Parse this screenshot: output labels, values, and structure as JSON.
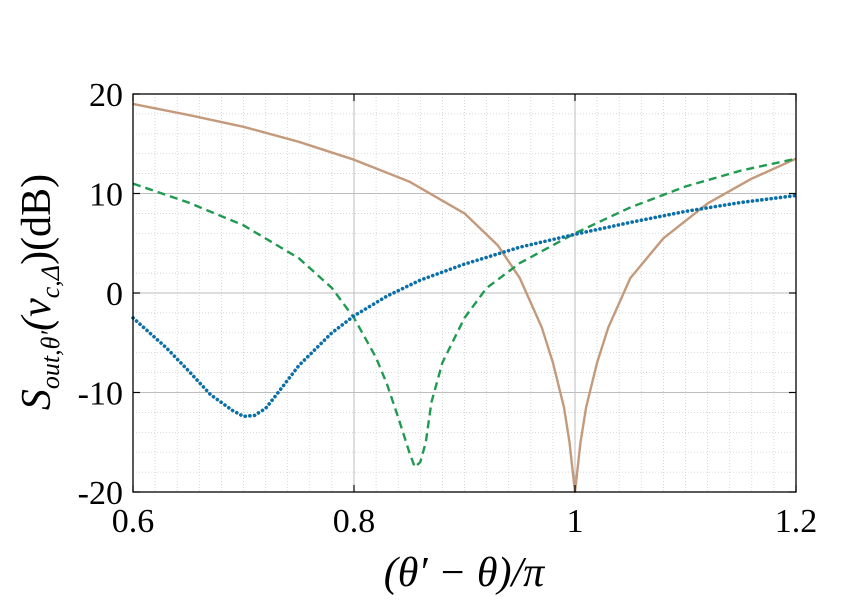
{
  "chart_data": {
    "type": "line",
    "xlabel": "(θ′ − θ)/π",
    "ylabel": "S_{out,θ′}(ν_{c,Δ})(dB)",
    "ylabel_main": "S",
    "ylabel_sub": "out,θ′",
    "ylabel_args": "(ν",
    "ylabel_args_sub": "c,Δ",
    "ylabel_tail": ")(dB)",
    "xlim": [
      0.6,
      1.2
    ],
    "ylim": [
      -20,
      20
    ],
    "x_ticks": [
      0.6,
      0.8,
      1.0,
      1.2
    ],
    "x_tick_labels": [
      "0.6",
      "0.8",
      "1",
      "1.2"
    ],
    "y_ticks": [
      20,
      10,
      0,
      -10,
      -20
    ],
    "y_tick_labels": [
      "20",
      "10",
      "0",
      "-10",
      "-20"
    ],
    "grid": true,
    "minor_grid": true,
    "series": [
      {
        "color": "#c49a7c",
        "style": "solid",
        "x": [
          0.6,
          0.65,
          0.7,
          0.75,
          0.8,
          0.85,
          0.9,
          0.93,
          0.95,
          0.97,
          0.98,
          0.99,
          0.995,
          1.0,
          1.005,
          1.01,
          1.02,
          1.03,
          1.05,
          1.08,
          1.12,
          1.16,
          1.2
        ],
        "y": [
          19.0,
          17.9,
          16.7,
          15.2,
          13.4,
          11.2,
          8.0,
          4.8,
          1.5,
          -3.5,
          -7.0,
          -11.5,
          -15.0,
          -20.0,
          -15.0,
          -11.5,
          -7.0,
          -3.5,
          1.5,
          5.5,
          9.0,
          11.5,
          13.5
        ]
      },
      {
        "color": "#1f9a50",
        "style": "dashed",
        "x": [
          0.6,
          0.65,
          0.7,
          0.75,
          0.78,
          0.8,
          0.82,
          0.83,
          0.84,
          0.85,
          0.855,
          0.86,
          0.865,
          0.87,
          0.88,
          0.9,
          0.92,
          0.95,
          1.0,
          1.05,
          1.1,
          1.15,
          1.2
        ],
        "y": [
          11.0,
          9.1,
          6.8,
          3.5,
          0.5,
          -2.5,
          -6.5,
          -9.2,
          -12.5,
          -16.0,
          -17.5,
          -17.0,
          -15.0,
          -11.0,
          -7.0,
          -2.5,
          0.5,
          3.0,
          6.0,
          8.6,
          10.7,
          12.3,
          13.5
        ]
      },
      {
        "color": "#0b6fa8",
        "style": "dotted",
        "x": [
          0.6,
          0.63,
          0.65,
          0.67,
          0.69,
          0.7,
          0.71,
          0.72,
          0.73,
          0.75,
          0.78,
          0.8,
          0.83,
          0.86,
          0.9,
          0.95,
          1.0,
          1.05,
          1.1,
          1.15,
          1.2
        ],
        "y": [
          -2.5,
          -5.5,
          -7.8,
          -10.2,
          -11.8,
          -12.4,
          -12.3,
          -11.6,
          -10.2,
          -7.3,
          -4.0,
          -2.3,
          -0.3,
          1.3,
          2.9,
          4.6,
          5.9,
          7.1,
          8.2,
          9.1,
          9.8
        ]
      }
    ]
  }
}
